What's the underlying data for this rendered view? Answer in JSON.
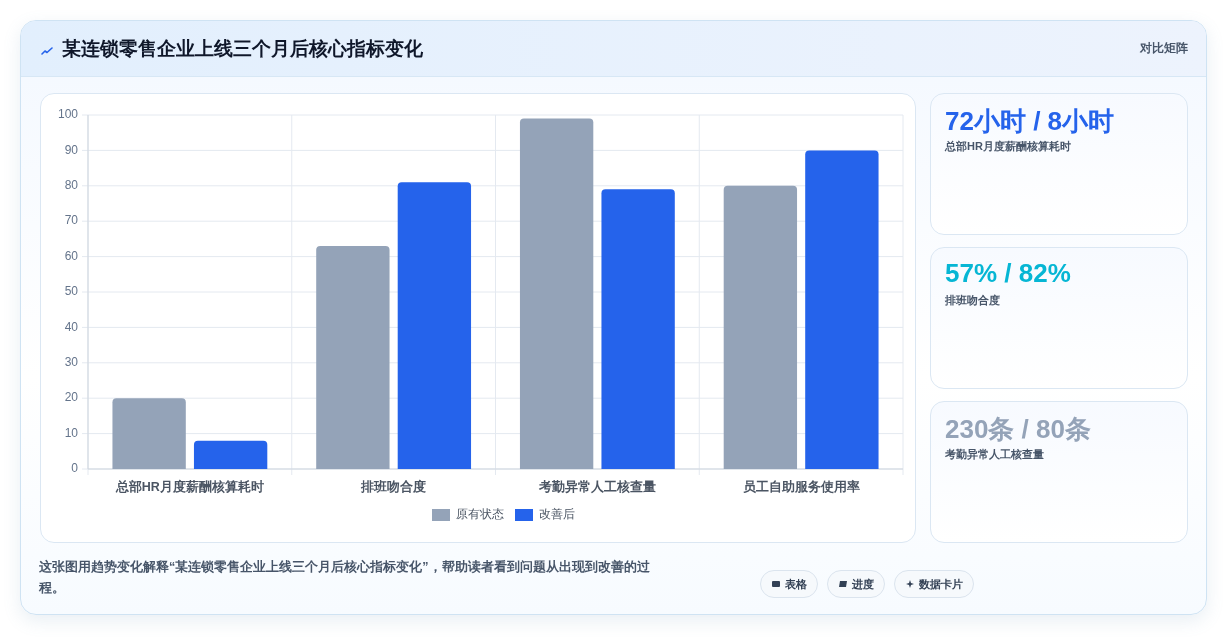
{
  "chart_data": [
    {
      "type": "bar",
      "title": "某连锁零售企业上线三个月后核心指标变化",
      "categories": [
        "总部HR月度薪酬核算耗时",
        "排班吻合度",
        "考勤异常人工核查量",
        "员工自助服务使用率"
      ],
      "series": [
        {
          "name": "原有状态",
          "color": "#94a3b8",
          "values": [
            20,
            63,
            99,
            80
          ]
        },
        {
          "name": "改善后",
          "color": "#2563eb",
          "values": [
            8,
            81,
            79,
            90
          ]
        }
      ],
      "ylim": [
        0,
        100
      ],
      "yticks": [
        0,
        10,
        20,
        30,
        40,
        50,
        60,
        70,
        80,
        90,
        100
      ],
      "grid": true,
      "legend": "bottom",
      "annotations": [
        "对比矩阵",
        "这张图用趋势变化解释“某连锁零售企业上线三个月后核心指标变化”，帮助读者看到问题从出现到改善的过程。",
        "表格",
        "进度",
        "数据卡片"
      ]
    },
    {
      "type": "other",
      "title": "72小时 / 8小时",
      "subtitle": "总部HR月度薪酬核算耗时",
      "color": "#2563eb"
    },
    {
      "type": "other",
      "title": "57% / 82%",
      "subtitle": "排班吻合度",
      "color": "#06b6d4"
    },
    {
      "type": "other",
      "title": "230条 / 80条",
      "subtitle": "考勤异常人工核查量",
      "color": "#94a3b8"
    }
  ]
}
